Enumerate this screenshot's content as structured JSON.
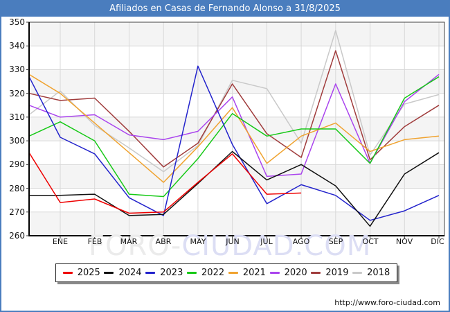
{
  "title": "Afiliados en Casas de Fernando Alonso a 31/8/2025",
  "watermark": {
    "part1": "FORO-",
    "part2": "CIUDAD.COM"
  },
  "footer": {
    "url": "http://www.foro-ciudad.com"
  },
  "colors": {
    "titlebar_bg": "#4a7dbe",
    "page_border": "#4a7dbe",
    "grid_line": "#d8d8d8",
    "band_fill": "#f4f4f4",
    "axis_line": "#000000"
  },
  "chart_data": {
    "type": "line",
    "title": "Afiliados en Casas de Fernando Alonso a 31/8/2025",
    "xlabel": "",
    "ylabel": "",
    "ylim": [
      260,
      350
    ],
    "grid": true,
    "legend_position": "bottom",
    "y_ticks": [
      350,
      340,
      330,
      320,
      310,
      300,
      290,
      280,
      270,
      260
    ],
    "categories": [
      "ENE",
      "FEB",
      "MAR",
      "ABR",
      "MAY",
      "JUN",
      "JUL",
      "AGO",
      "SEP",
      "OCT",
      "NOV",
      "DIC"
    ],
    "series_note": "start = value drawn at the left axis edge (previous December); 2025 data ends in August",
    "series": [
      {
        "name": "2025",
        "color": "#ee0000",
        "start": 295,
        "values": [
          274,
          275.5,
          269.5,
          270,
          282.5,
          294.5,
          277.5,
          278,
          null,
          null,
          null,
          null
        ]
      },
      {
        "name": "2024",
        "color": "#111111",
        "start": 277,
        "values": [
          277,
          277.5,
          268.5,
          269,
          282,
          295.5,
          283.5,
          290,
          281,
          264,
          286,
          295
        ]
      },
      {
        "name": "2023",
        "color": "#2323cc",
        "start": 327,
        "values": [
          301.5,
          294.5,
          276,
          268.5,
          331.5,
          298.5,
          273.5,
          281.5,
          277,
          266.5,
          270.5,
          277
        ]
      },
      {
        "name": "2022",
        "color": "#16c916",
        "start": 302,
        "values": [
          308,
          300,
          277.5,
          276.5,
          292.5,
          311.5,
          302,
          305,
          305,
          290.5,
          318,
          327
        ]
      },
      {
        "name": "2021",
        "color": "#f0a330",
        "start": 328,
        "values": [
          320,
          307.5,
          295,
          282.5,
          297.5,
          314,
          290.5,
          302,
          307.5,
          295.5,
          300.5,
          302
        ]
      },
      {
        "name": "2020",
        "color": "#aa44ee",
        "start": 315,
        "values": [
          310,
          311,
          302.5,
          300.5,
          304,
          318.5,
          285,
          286,
          324,
          290.5,
          316.5,
          328
        ]
      },
      {
        "name": "2019",
        "color": "#a03c3c",
        "start": 320,
        "values": [
          317,
          318,
          304,
          289,
          299,
          324,
          303,
          293,
          338,
          292,
          306,
          315
        ]
      },
      {
        "name": "2018",
        "color": "#c9c9c9",
        "start": 311,
        "values": [
          321,
          306.5,
          297,
          287,
          298,
          325.5,
          322,
          299,
          346.5,
          294,
          315.5,
          319.5
        ]
      }
    ]
  }
}
